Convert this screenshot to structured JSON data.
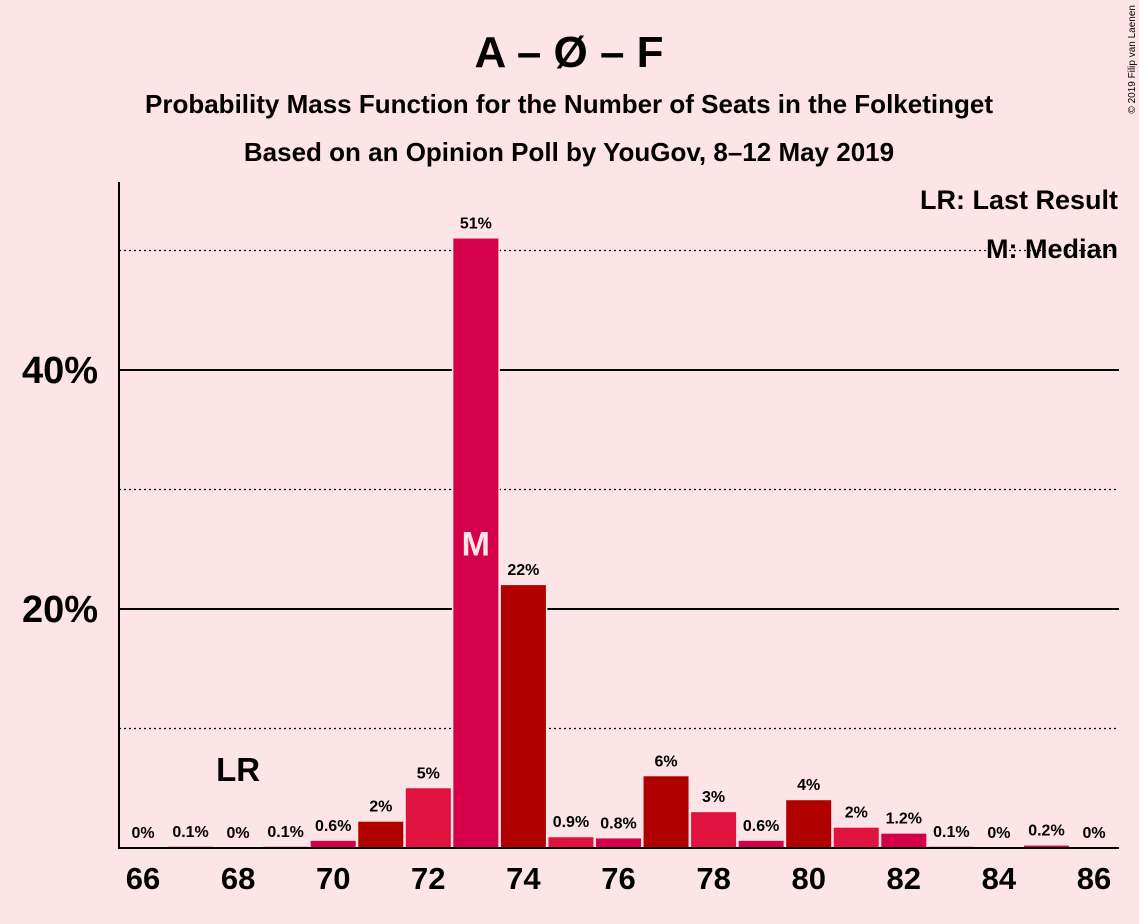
{
  "title": "A – Ø – F",
  "subtitle1": "Probability Mass Function for the Number of Seats in the Folketinget",
  "subtitle2": "Based on an Opinion Poll by YouGov, 8–12 May 2019",
  "credit": "© 2019 Filip van Laenen",
  "legend": {
    "lr": "LR: Last Result",
    "median": "M: Median"
  },
  "markers": {
    "lr_label": "LR",
    "lr_seats": 68,
    "median_label": "M",
    "median_seats": 73
  },
  "colors": {
    "background": "#fde4e7",
    "bar_a": "#d40049",
    "bar_b": "#b00000",
    "bar_c": "#e0123e"
  },
  "chart_data": {
    "type": "bar",
    "xlabel": "",
    "ylabel": "",
    "ylim": [
      0,
      56
    ],
    "y_major_ticks": [
      20,
      40
    ],
    "y_major_tick_labels": [
      "20%",
      "40%"
    ],
    "y_minor_gridlines": [
      10,
      30,
      50
    ],
    "x_tick_labels": [
      "66",
      "68",
      "70",
      "72",
      "74",
      "76",
      "78",
      "80",
      "82",
      "84",
      "86"
    ],
    "grid": true,
    "legend_position": "top-right",
    "categories": [
      66,
      67,
      68,
      69,
      70,
      71,
      72,
      73,
      74,
      75,
      76,
      77,
      78,
      79,
      80,
      81,
      82,
      83,
      84,
      85,
      86
    ],
    "values": [
      0,
      0.1,
      0,
      0.1,
      0.6,
      2.2,
      5,
      51,
      22,
      0.9,
      0.8,
      6,
      3,
      0.6,
      4,
      1.7,
      1.2,
      0.1,
      0,
      0.2,
      0
    ],
    "value_labels": [
      "0%",
      "0.1%",
      "0%",
      "0.1%",
      "0.6%",
      "2%",
      "5%",
      "51%",
      "22%",
      "0.9%",
      "0.8%",
      "6%",
      "3%",
      "0.6%",
      "4%",
      "2%",
      "1.2%",
      "0.1%",
      "0%",
      "0.2%",
      "0%"
    ],
    "bar_colors": [
      "#d40049",
      "#b00000",
      "#e0123e",
      "#d40049",
      "#d40049",
      "#b00000",
      "#e0123e",
      "#d40049",
      "#b00000",
      "#e0123e",
      "#d40049",
      "#b00000",
      "#e0123e",
      "#d40049",
      "#b00000",
      "#e0123e",
      "#d40049",
      "#b00000",
      "#e0123e",
      "#d40049",
      "#b00000"
    ]
  }
}
